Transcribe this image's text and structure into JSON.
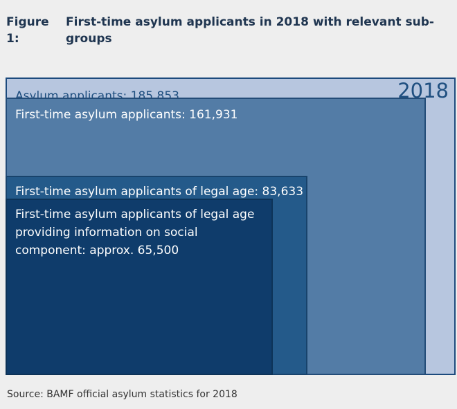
{
  "figure": {
    "number": "Figure 1:",
    "title": "First-time asylum applicants in 2018 with relevant sub-groups"
  },
  "chart_data": {
    "type": "nested-area",
    "year_label": "2018",
    "groups": [
      {
        "label": "Asylum applicants: 185,853",
        "value": 185853
      },
      {
        "label": "First-time asylum applicants: 161,931",
        "value": 161931
      },
      {
        "label": "First-time asylum applicants of legal age: 83,633",
        "value": 83633
      },
      {
        "label": "First-time asylum applicants of legal age providing information on social component: approx. 65,500",
        "value": 65500
      }
    ]
  },
  "source": "Source: BAMF official asylum statistics for 2018",
  "colors": {
    "box0": "#b7c6df",
    "box1": "#537ca6",
    "box2": "#245a8a",
    "box3": "#0f3c6b",
    "accent_text": "#1f4f80"
  }
}
